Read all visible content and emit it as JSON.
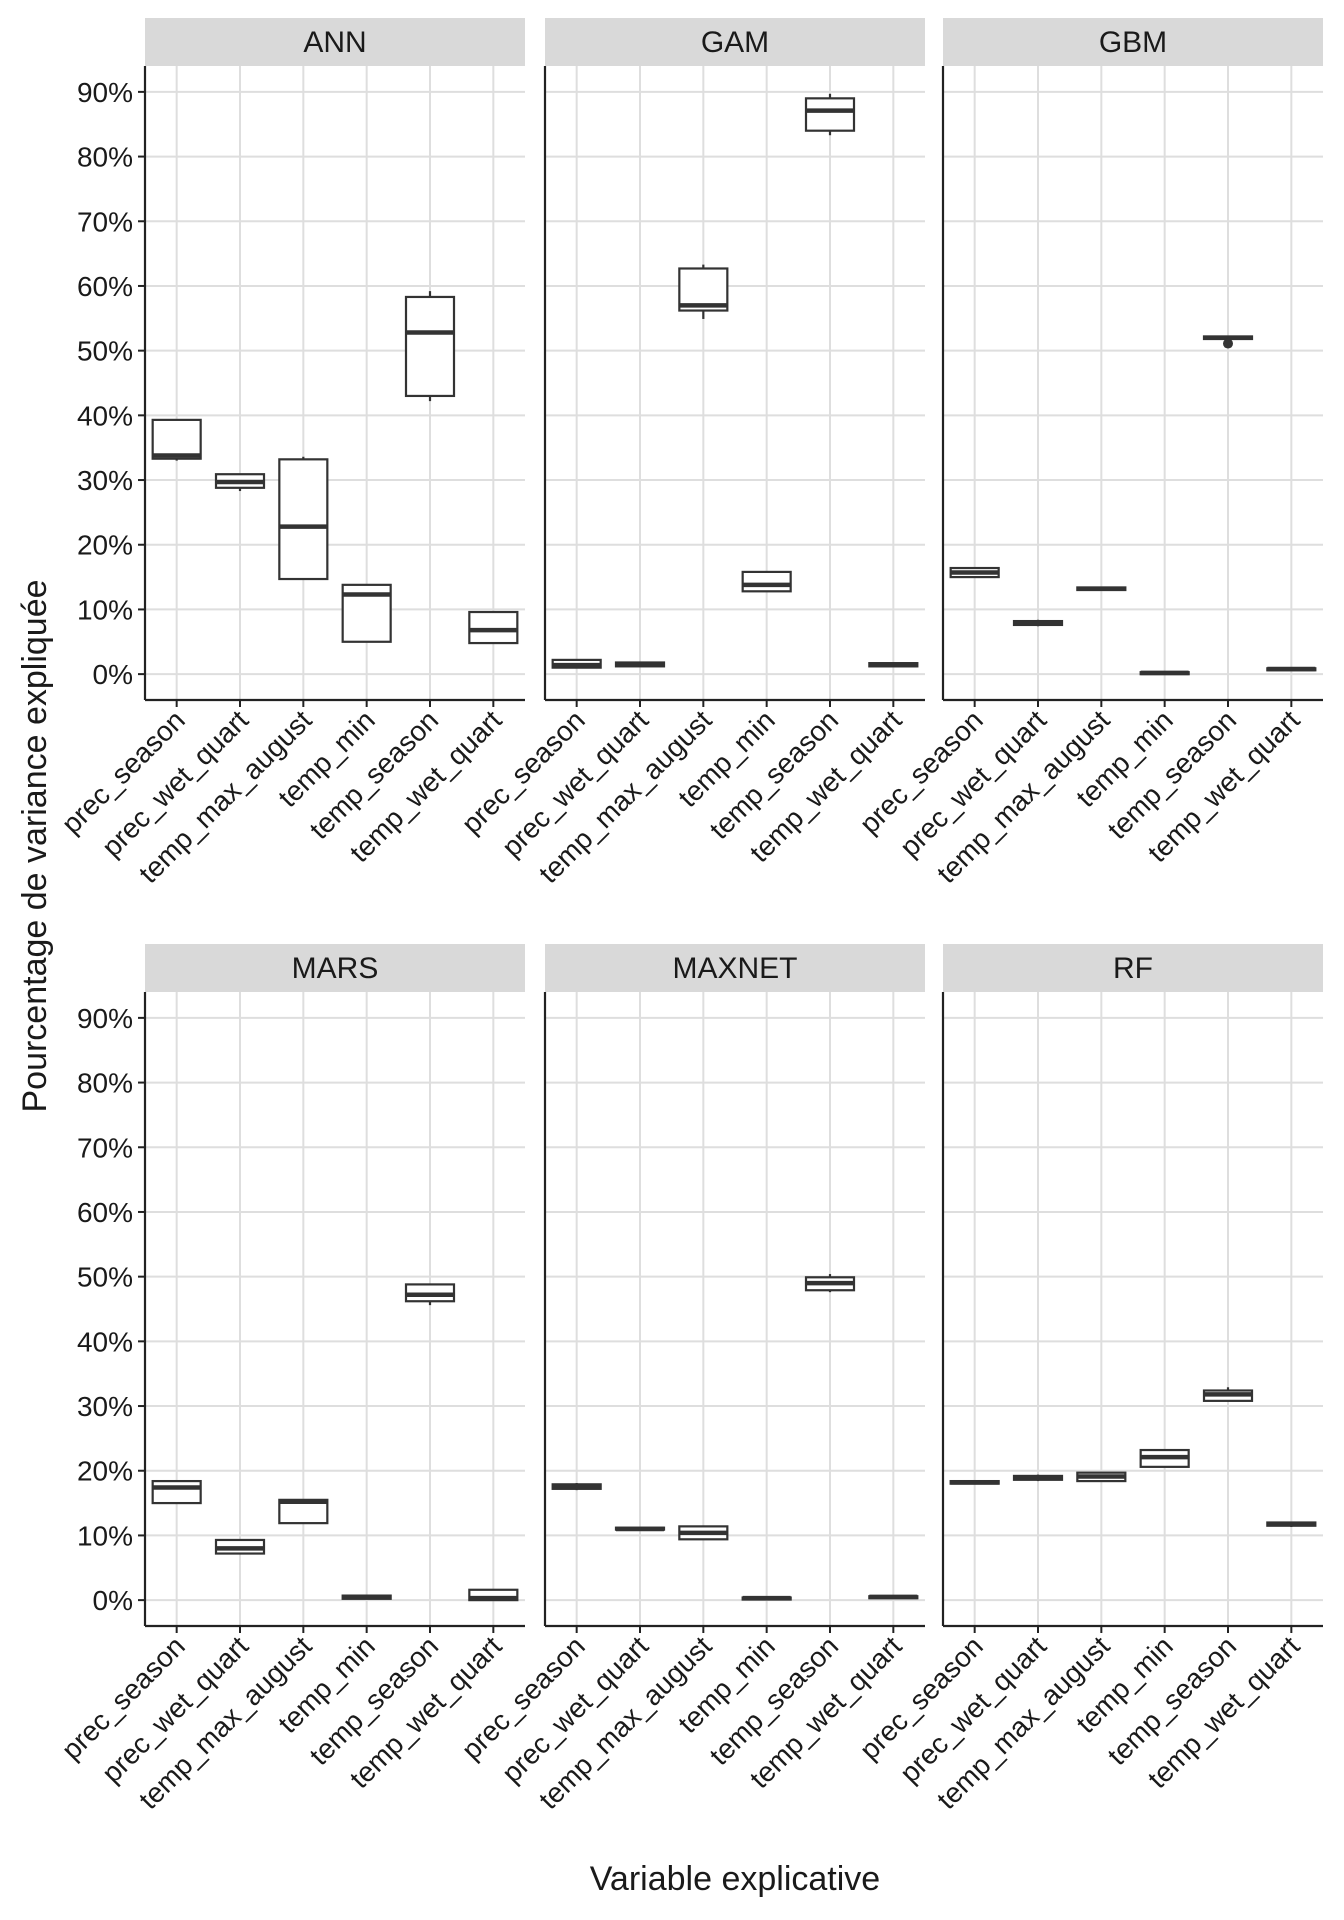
{
  "chart_data": {
    "type": "boxplot",
    "xlabel": "Variable explicative",
    "ylabel": "Pourcentage de variance expliquée",
    "ylim": [
      -4,
      94
    ],
    "y_ticks": [
      0,
      10,
      20,
      30,
      40,
      50,
      60,
      70,
      80,
      90
    ],
    "y_tick_labels": [
      "0%",
      "10%",
      "20%",
      "30%",
      "40%",
      "50%",
      "60%",
      "70%",
      "80%",
      "90%"
    ],
    "categories": [
      "prec_season",
      "prec_wet_quart",
      "temp_max_august",
      "temp_min",
      "temp_season",
      "temp_wet_quart"
    ],
    "grid": true,
    "panels": [
      {
        "name": "ANN",
        "boxes": [
          {
            "min": 33.0,
            "q1": 33.3,
            "median": 33.8,
            "q3": 39.3,
            "max": 39.3
          },
          {
            "min": 28.3,
            "q1": 28.8,
            "median": 29.7,
            "q3": 30.9,
            "max": 30.9
          },
          {
            "min": 14.7,
            "q1": 14.7,
            "median": 22.8,
            "q3": 33.2,
            "max": 33.6
          },
          {
            "min": 5.0,
            "q1": 5.0,
            "median": 12.3,
            "q3": 13.8,
            "max": 13.8
          },
          {
            "min": 42.2,
            "q1": 43.0,
            "median": 52.8,
            "q3": 58.3,
            "max": 59.2
          },
          {
            "min": 4.8,
            "q1": 4.8,
            "median": 6.8,
            "q3": 9.6,
            "max": 9.6
          }
        ]
      },
      {
        "name": "GAM",
        "boxes": [
          {
            "min": 1.0,
            "q1": 1.0,
            "median": 1.4,
            "q3": 2.2,
            "max": 2.2
          },
          {
            "min": 1.1,
            "q1": 1.2,
            "median": 1.5,
            "q3": 1.8,
            "max": 1.9
          },
          {
            "min": 54.9,
            "q1": 56.2,
            "median": 57.0,
            "q3": 62.7,
            "max": 63.3
          },
          {
            "min": 12.8,
            "q1": 12.8,
            "median": 13.8,
            "q3": 15.8,
            "max": 15.8
          },
          {
            "min": 83.3,
            "q1": 84.0,
            "median": 87.1,
            "q3": 89.0,
            "max": 89.7
          },
          {
            "min": 1.1,
            "q1": 1.2,
            "median": 1.4,
            "q3": 1.7,
            "max": 1.8
          }
        ]
      },
      {
        "name": "GBM",
        "boxes": [
          {
            "min": 15.0,
            "q1": 15.0,
            "median": 15.7,
            "q3": 16.4,
            "max": 16.4
          },
          {
            "min": 7.4,
            "q1": 7.6,
            "median": 7.9,
            "q3": 8.2,
            "max": 8.4
          },
          {
            "min": 12.9,
            "q1": 13.0,
            "median": 13.2,
            "q3": 13.4,
            "max": 13.5
          },
          {
            "min": 0.1,
            "q1": 0.1,
            "median": 0.2,
            "q3": 0.3,
            "max": 0.4
          },
          {
            "min": 51.7,
            "q1": 51.8,
            "median": 52.0,
            "q3": 52.2,
            "max": 52.3,
            "outliers": [
              51.1
            ]
          },
          {
            "min": 0.6,
            "q1": 0.7,
            "median": 0.8,
            "q3": 0.9,
            "max": 1.0
          }
        ]
      },
      {
        "name": "MARS",
        "boxes": [
          {
            "min": 15.0,
            "q1": 15.0,
            "median": 17.4,
            "q3": 18.4,
            "max": 18.4
          },
          {
            "min": 7.2,
            "q1": 7.2,
            "median": 8.0,
            "q3": 9.3,
            "max": 9.3
          },
          {
            "min": 11.9,
            "q1": 11.9,
            "median": 15.2,
            "q3": 15.5,
            "max": 15.5
          },
          {
            "min": 0.1,
            "q1": 0.2,
            "median": 0.5,
            "q3": 0.7,
            "max": 0.8
          },
          {
            "min": 45.6,
            "q1": 46.2,
            "median": 47.2,
            "q3": 48.8,
            "max": 48.8
          },
          {
            "min": 0.0,
            "q1": 0.0,
            "median": 0.3,
            "q3": 1.6,
            "max": 1.6
          }
        ]
      },
      {
        "name": "MAXNET",
        "boxes": [
          {
            "min": 17.0,
            "q1": 17.2,
            "median": 17.6,
            "q3": 17.9,
            "max": 18.1
          },
          {
            "min": 10.8,
            "q1": 10.9,
            "median": 11.0,
            "q3": 11.2,
            "max": 11.3
          },
          {
            "min": 9.4,
            "q1": 9.4,
            "median": 10.4,
            "q3": 11.4,
            "max": 11.4
          },
          {
            "min": 0.0,
            "q1": 0.1,
            "median": 0.3,
            "q3": 0.4,
            "max": 0.5
          },
          {
            "min": 47.6,
            "q1": 47.9,
            "median": 49.0,
            "q3": 49.9,
            "max": 50.4
          },
          {
            "min": 0.2,
            "q1": 0.3,
            "median": 0.5,
            "q3": 0.6,
            "max": 0.7
          }
        ]
      },
      {
        "name": "RF",
        "boxes": [
          {
            "min": 17.9,
            "q1": 18.0,
            "median": 18.2,
            "q3": 18.4,
            "max": 18.5
          },
          {
            "min": 18.4,
            "q1": 18.6,
            "median": 18.9,
            "q3": 19.2,
            "max": 19.4
          },
          {
            "min": 18.4,
            "q1": 18.4,
            "median": 19.1,
            "q3": 19.7,
            "max": 19.7
          },
          {
            "min": 20.6,
            "q1": 20.6,
            "median": 22.1,
            "q3": 23.2,
            "max": 23.2
          },
          {
            "min": 30.8,
            "q1": 30.8,
            "median": 31.8,
            "q3": 32.4,
            "max": 32.9
          },
          {
            "min": 11.3,
            "q1": 11.5,
            "median": 11.8,
            "q3": 12.0,
            "max": 12.1
          }
        ]
      }
    ]
  }
}
